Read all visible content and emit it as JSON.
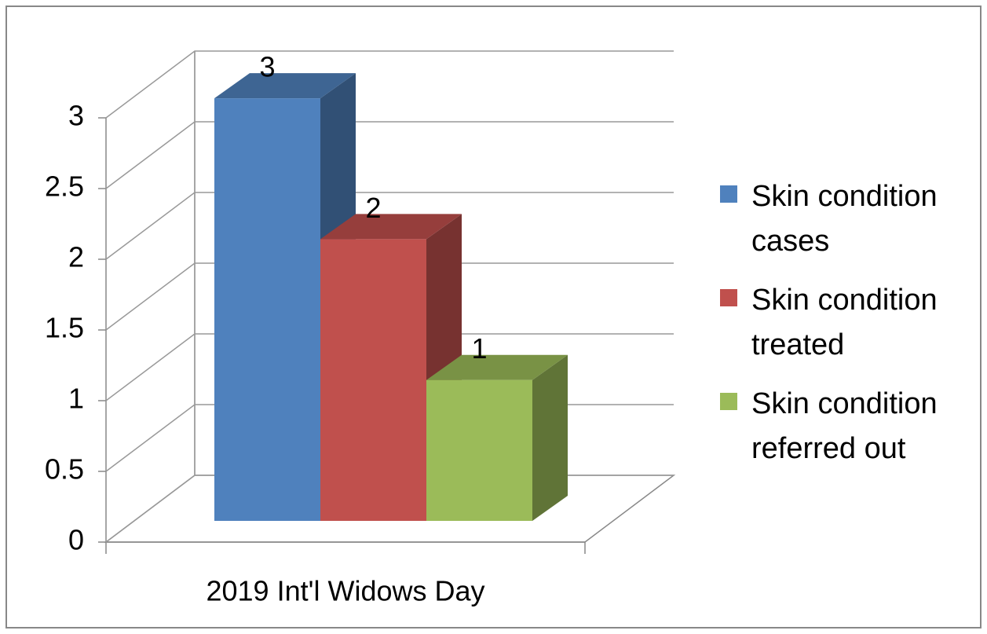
{
  "chart_data": {
    "type": "bar3d",
    "categories": [
      "2019 Int'l Widows Day"
    ],
    "series": [
      {
        "name": "Skin condition cases",
        "color": "#4f81bd",
        "values": [
          3
        ]
      },
      {
        "name": "Skin condition treated",
        "color": "#c0504d",
        "values": [
          2
        ]
      },
      {
        "name": "Skin condition referred out",
        "color": "#9bbb59",
        "values": [
          1
        ]
      }
    ],
    "ylim": [
      0,
      3
    ],
    "yticks": [
      0,
      0.5,
      1,
      1.5,
      2,
      2.5,
      3
    ],
    "grid": true,
    "legend": "right"
  }
}
